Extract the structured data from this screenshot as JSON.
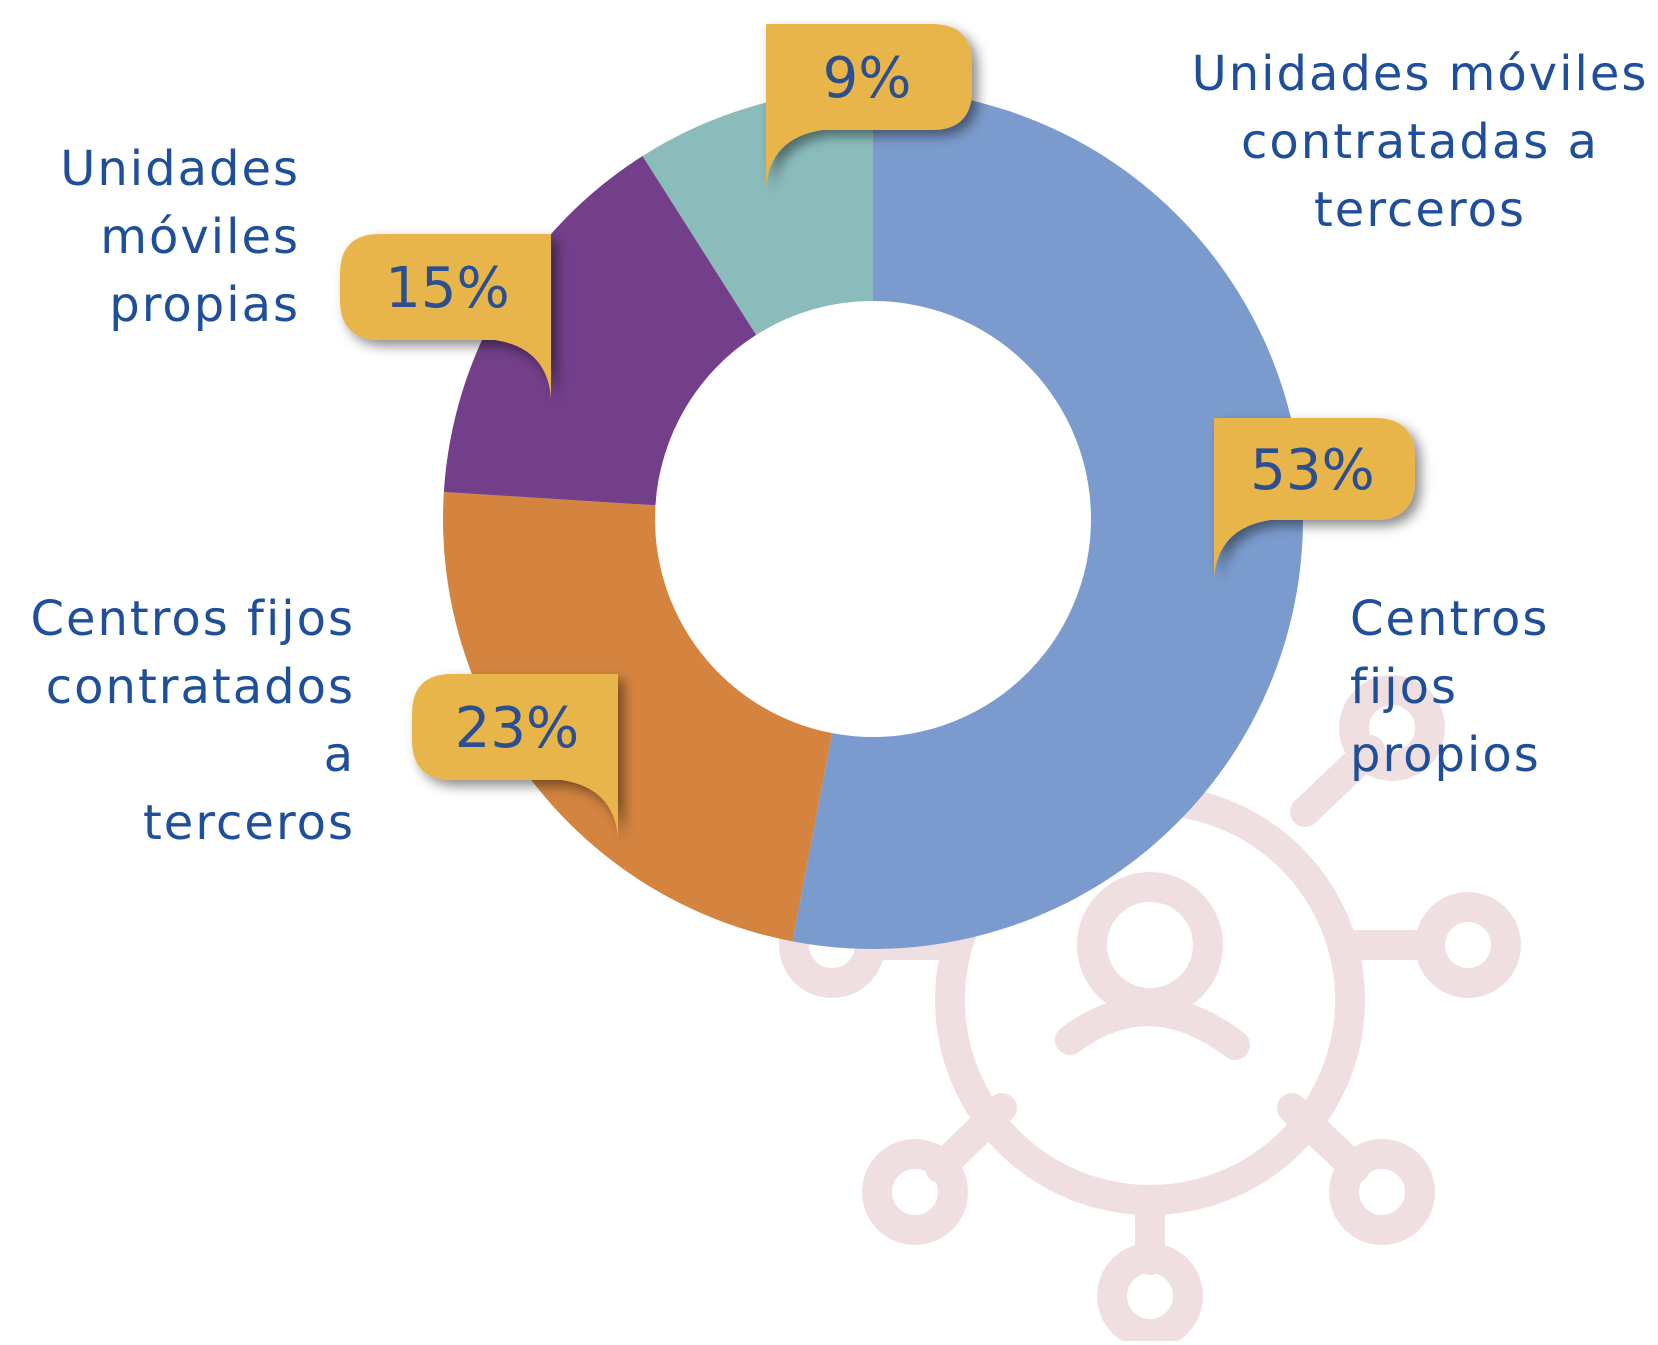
{
  "chart_data": {
    "type": "pie",
    "variant": "donut",
    "title": "",
    "labels": [
      "Centros fijos propios",
      "Centros fijos contratados a terceros",
      "Unidades móviles propias",
      "Unidades móviles contratadas a terceros"
    ],
    "values": [
      53,
      23,
      15,
      9
    ],
    "value_labels": [
      "53%",
      "23%",
      "15%",
      "9%"
    ],
    "colors": [
      "#7b9bce",
      "#d4843f",
      "#733f8a",
      "#8bbcbc"
    ],
    "callout_color": "#e8b54c",
    "legend": "none",
    "label_placement": "outside-callouts"
  },
  "text": {
    "label_umct": "Unidades móviles\ncontratadas a\nterceros",
    "label_ump": "Unidades\nmóviles\npropias",
    "label_cfct": "Centros fijos\ncontratados a\nterceros",
    "label_cfp": "Centros\nfijos\npropios"
  },
  "colors": {
    "label_text": "#1f4e9a",
    "percent_text": "#2b4f8f",
    "watermark": "#f0dfe0"
  },
  "watermark_icon": "network-person-icon"
}
